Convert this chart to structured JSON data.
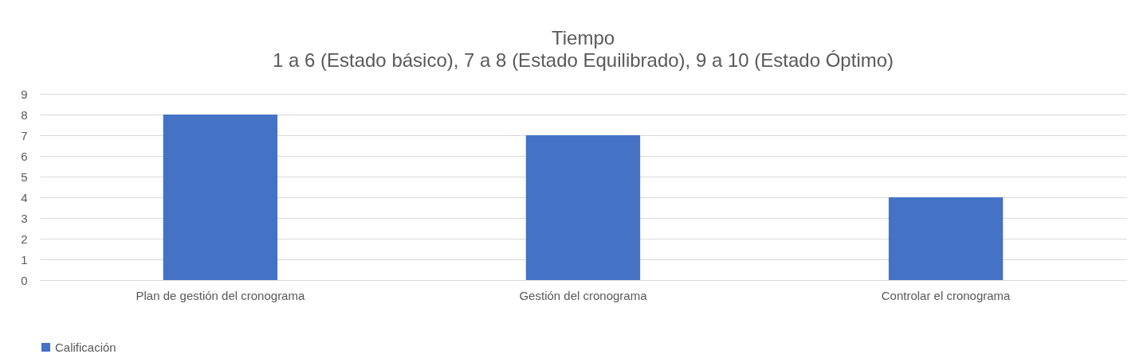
{
  "chart_data": {
    "type": "bar",
    "title": "Tiempo",
    "subtitle": "1 a 6 (Estado básico), 7 a 8 (Estado Equilibrado), 9 a 10 (Estado Óptimo)",
    "categories": [
      "Plan de gestión del cronograma",
      "Gestión del cronograma",
      "Controlar el cronograma"
    ],
    "series": [
      {
        "name": "Calificación",
        "color": "#4472c4",
        "values": [
          8,
          7,
          4
        ]
      }
    ],
    "ylim": [
      0,
      9
    ],
    "yticks": [
      0,
      1,
      2,
      3,
      4,
      5,
      6,
      7,
      8,
      9
    ],
    "grid": "y",
    "legend": "bottom"
  }
}
